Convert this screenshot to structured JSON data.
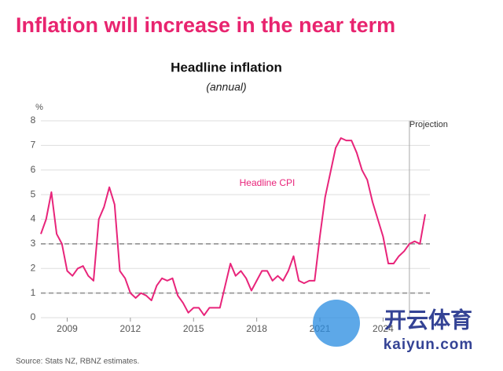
{
  "chart_data": {
    "type": "line",
    "heading": "Inflation will increase in the near term",
    "title": "Headline inflation",
    "subtitle": "(annual)",
    "y_label": "%",
    "source": "Source: Stats NZ, RBNZ estimates.",
    "annotation": "Headline CPI",
    "projection": {
      "x": 2025.25,
      "label": "Projection"
    },
    "reference_lines": [
      1,
      3
    ],
    "grid": true,
    "x": [
      2007.75,
      2008,
      2008.25,
      2008.5,
      2008.75,
      2009,
      2009.25,
      2009.5,
      2009.75,
      2010,
      2010.25,
      2010.5,
      2010.75,
      2011,
      2011.25,
      2011.5,
      2011.75,
      2012,
      2012.25,
      2012.5,
      2012.75,
      2013,
      2013.25,
      2013.5,
      2013.75,
      2014,
      2014.25,
      2014.5,
      2014.75,
      2015,
      2015.25,
      2015.5,
      2015.75,
      2016,
      2016.25,
      2016.5,
      2016.75,
      2017,
      2017.25,
      2017.5,
      2017.75,
      2018,
      2018.25,
      2018.5,
      2018.75,
      2019,
      2019.25,
      2019.5,
      2019.75,
      2020,
      2020.25,
      2020.5,
      2020.75,
      2021,
      2021.25,
      2021.5,
      2021.75,
      2022,
      2022.25,
      2022.5,
      2022.75,
      2023,
      2023.25,
      2023.5,
      2023.75,
      2024,
      2024.25,
      2024.5,
      2024.75,
      2025,
      2025.25,
      2025.5,
      2025.75,
      2026
    ],
    "series": [
      {
        "name": "Headline CPI",
        "color": "#e8247a",
        "values": [
          3.4,
          4.0,
          5.1,
          3.4,
          3.0,
          1.9,
          1.7,
          2.0,
          2.1,
          1.7,
          1.5,
          4.0,
          4.5,
          5.3,
          4.6,
          1.9,
          1.6,
          1.0,
          0.8,
          1.0,
          0.9,
          0.7,
          1.3,
          1.6,
          1.5,
          1.6,
          0.9,
          0.6,
          0.2,
          0.4,
          0.4,
          0.1,
          0.4,
          0.4,
          0.4,
          1.3,
          2.2,
          1.7,
          1.9,
          1.6,
          1.1,
          1.5,
          1.9,
          1.9,
          1.5,
          1.7,
          1.5,
          1.9,
          2.5,
          1.5,
          1.4,
          1.5,
          1.5,
          3.3,
          4.9,
          5.9,
          6.9,
          7.3,
          7.2,
          7.2,
          6.7,
          6.0,
          5.6,
          4.7,
          4.0,
          3.3,
          2.2,
          2.2,
          2.5,
          2.7,
          3.0,
          3.1,
          3.0,
          4.2
        ]
      }
    ],
    "xlim": [
      2007.75,
      2026
    ],
    "xticks": [
      2009,
      2012,
      2015,
      2018,
      2021,
      2024
    ],
    "ylim": [
      0,
      8
    ],
    "yticks": [
      0,
      1,
      2,
      3,
      4,
      5,
      6,
      7,
      8
    ]
  },
  "watermark": {
    "brand": "开云体育",
    "site": "kaiyun.com"
  }
}
